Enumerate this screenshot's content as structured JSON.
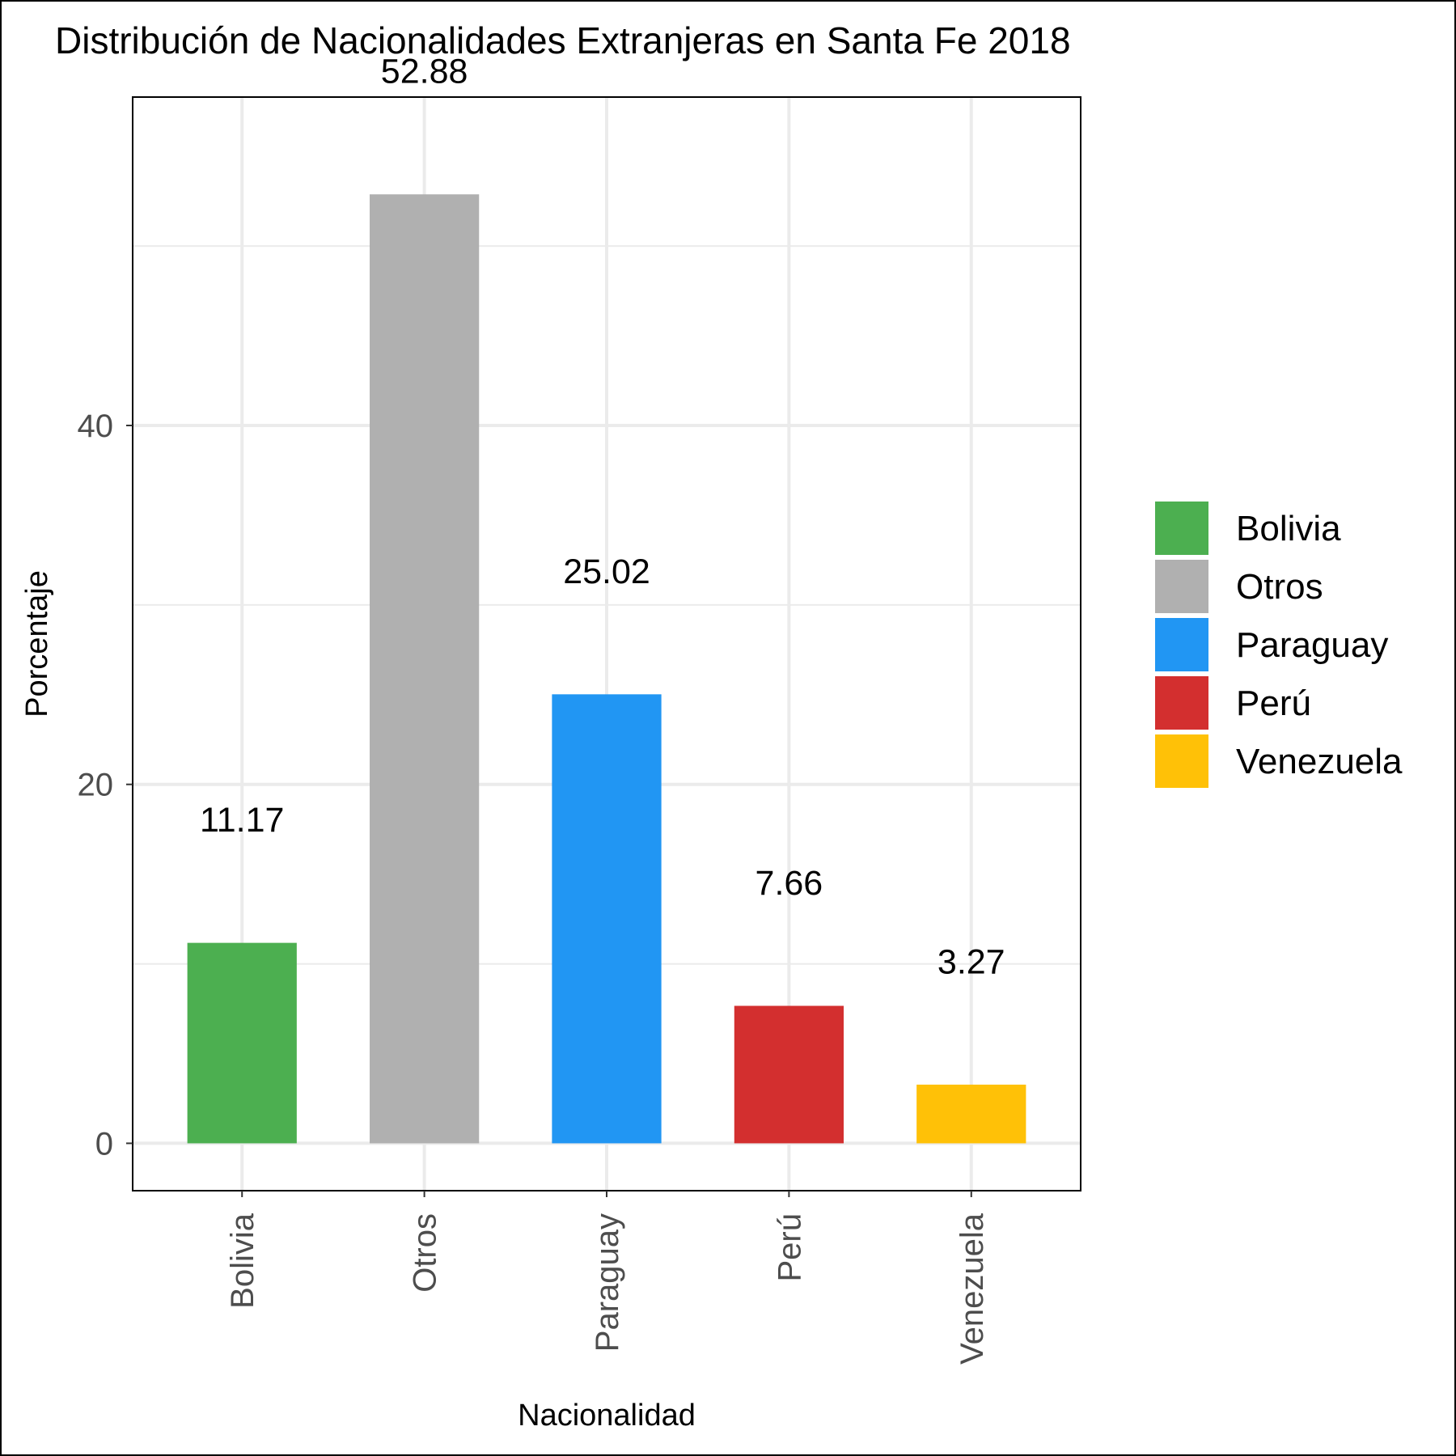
{
  "chart_data": {
    "type": "bar",
    "title": "Distribución de Nacionalidades Extranjeras en Santa Fe 2018",
    "xlabel": "Nacionalidad",
    "ylabel": "Porcentaje",
    "categories": [
      "Bolivia",
      "Otros",
      "Paraguay",
      "Perú",
      "Venezuela"
    ],
    "values": [
      11.17,
      52.88,
      25.02,
      7.66,
      3.27
    ],
    "value_labels": [
      "11.17",
      "52.88",
      "25.02",
      "7.66",
      "3.27"
    ],
    "colors": [
      "#4CAF50",
      "#B0B0B0",
      "#2196F3",
      "#D32F2F",
      "#FFC107"
    ],
    "y_ticks": [
      0,
      20,
      40
    ],
    "y_tick_labels": [
      "0",
      "20",
      "40"
    ],
    "ylim": [
      -2.64,
      58.3
    ],
    "grid": true,
    "legend": {
      "position": "right",
      "entries": [
        "Bolivia",
        "Otros",
        "Paraguay",
        "Perú",
        "Venezuela"
      ]
    }
  }
}
